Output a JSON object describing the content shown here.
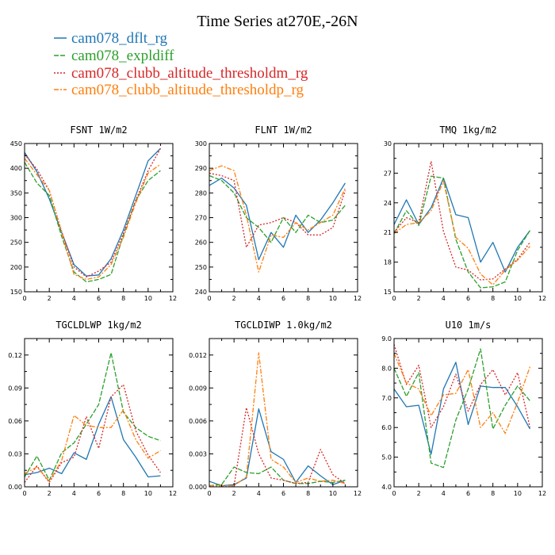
{
  "figure": {
    "title": "Time Series at270E,-26N",
    "legend": [
      {
        "label": "cam078_dflt_rg",
        "color": "#1f77b4",
        "dash": "solid"
      },
      {
        "label": "cam078_expldiff",
        "color": "#2ca02c",
        "dash": "longdash"
      },
      {
        "label": "cam078_clubb_altitude_thresholdm_rg",
        "color": "#d62728",
        "dash": "dot"
      },
      {
        "label": "cam078_clubb_altitude_thresholdp_rg",
        "color": "#ff7f0e",
        "dash": "dashdot"
      }
    ]
  },
  "chart_data": [
    {
      "type": "line",
      "title": "FSNT  1W/m2",
      "xlim": [
        0,
        12
      ],
      "xticks": [
        0,
        2,
        4,
        6,
        8,
        10,
        12
      ],
      "xtick_labels": [
        "0",
        "2",
        "4",
        "6",
        "8",
        "10",
        "12"
      ],
      "ylim": [
        150,
        450
      ],
      "yticks": [
        150,
        200,
        250,
        300,
        350,
        400,
        450
      ],
      "ytick_labels": [
        "150",
        "200",
        "250",
        "300",
        "350",
        "400",
        "450"
      ],
      "x": [
        0,
        1,
        2,
        3,
        4,
        5,
        6,
        7,
        8,
        9,
        10,
        11
      ],
      "series": [
        {
          "name": "cam078_dflt_rg",
          "values": [
            432,
            393,
            338,
            270,
            205,
            182,
            184,
            217,
            275,
            345,
            415,
            440
          ]
        },
        {
          "name": "cam078_expldiff",
          "values": [
            412,
            370,
            345,
            262,
            190,
            170,
            175,
            185,
            265,
            335,
            375,
            395
          ]
        },
        {
          "name": "cam078_clubb_altitude_thresholdm_rg",
          "values": [
            428,
            398,
            355,
            272,
            200,
            180,
            192,
            210,
            268,
            335,
            395,
            440
          ]
        },
        {
          "name": "cam078_clubb_altitude_thresholdp_rg",
          "values": [
            420,
            387,
            355,
            270,
            185,
            175,
            180,
            205,
            260,
            330,
            390,
            408
          ]
        }
      ]
    },
    {
      "type": "line",
      "title": "FLNT  1W/m2",
      "xlim": [
        0,
        12
      ],
      "xticks": [
        0,
        2,
        4,
        6,
        8,
        10,
        12
      ],
      "xtick_labels": [
        "0",
        "2",
        "4",
        "6",
        "8",
        "10",
        "12"
      ],
      "ylim": [
        240,
        300
      ],
      "yticks": [
        240,
        250,
        260,
        270,
        280,
        290,
        300
      ],
      "ytick_labels": [
        "240",
        "250",
        "260",
        "270",
        "280",
        "290",
        "300"
      ],
      "x": [
        0,
        1,
        2,
        3,
        4,
        5,
        6,
        7,
        8,
        9,
        10,
        11
      ],
      "series": [
        {
          "name": "cam078_dflt_rg",
          "values": [
            283,
            286,
            282,
            275,
            253,
            264,
            258,
            271,
            264,
            269,
            276,
            284
          ]
        },
        {
          "name": "cam078_expldiff",
          "values": [
            287,
            285,
            280,
            270,
            266,
            260,
            270,
            264,
            271,
            268,
            269,
            275
          ]
        },
        {
          "name": "cam078_clubb_altitude_thresholdm_rg",
          "values": [
            288,
            287,
            285,
            258,
            267,
            268,
            270,
            268,
            263,
            263,
            266,
            281
          ]
        },
        {
          "name": "cam078_clubb_altitude_thresholdp_rg",
          "values": [
            289,
            291,
            289,
            271,
            248,
            263,
            262,
            268,
            265,
            268,
            271,
            282
          ]
        }
      ]
    },
    {
      "type": "line",
      "title": "TMQ  1kg/m2",
      "xlim": [
        0,
        12
      ],
      "xticks": [
        0,
        2,
        4,
        6,
        8,
        10,
        12
      ],
      "xtick_labels": [
        "0",
        "2",
        "4",
        "6",
        "8",
        "10",
        "12"
      ],
      "ylim": [
        15,
        30
      ],
      "yticks": [
        15,
        18,
        21,
        24,
        27,
        30
      ],
      "ytick_labels": [
        "15",
        "18",
        "21",
        "24",
        "27",
        "30"
      ],
      "x": [
        0,
        1,
        2,
        3,
        4,
        5,
        6,
        7,
        8,
        9,
        10,
        11
      ],
      "series": [
        {
          "name": "cam078_dflt_rg",
          "values": [
            21.8,
            24.3,
            21.8,
            23.5,
            26.5,
            22.8,
            22.5,
            18.0,
            20.0,
            17.0,
            19.5,
            21.2
          ]
        },
        {
          "name": "cam078_expldiff",
          "values": [
            20.9,
            23.2,
            21.7,
            26.7,
            26.5,
            20.3,
            17.0,
            15.4,
            15.5,
            16.0,
            19.2,
            21.2
          ]
        },
        {
          "name": "cam078_clubb_altitude_thresholdm_rg",
          "values": [
            21.0,
            22.5,
            22.0,
            28.2,
            21.1,
            17.5,
            17.2,
            16.2,
            16.3,
            17.3,
            18.3,
            20.0
          ]
        },
        {
          "name": "cam078_clubb_altitude_thresholdp_rg",
          "values": [
            20.9,
            21.8,
            22.0,
            23.2,
            26.2,
            20.5,
            19.4,
            16.8,
            15.7,
            17.2,
            18.2,
            19.6
          ]
        }
      ]
    },
    {
      "type": "line",
      "title": "TGCLDLWP  1kg/m2",
      "xlim": [
        0,
        12
      ],
      "xticks": [
        0,
        2,
        4,
        6,
        8,
        10,
        12
      ],
      "xtick_labels": [
        "0",
        "2",
        "4",
        "6",
        "8",
        "10",
        "12"
      ],
      "ylim": [
        0,
        0.135
      ],
      "yticks": [
        0,
        0.03,
        0.06,
        0.09,
        0.12
      ],
      "ytick_labels": [
        "0.00",
        "0.03",
        "0.06",
        "0.09",
        "0.12"
      ],
      "x": [
        0,
        1,
        2,
        3,
        4,
        5,
        6,
        7,
        8,
        9,
        10,
        11
      ],
      "series": [
        {
          "name": "cam078_dflt_rg",
          "values": [
            0.011,
            0.013,
            0.017,
            0.012,
            0.031,
            0.025,
            0.057,
            0.082,
            0.043,
            0.027,
            0.009,
            0.01
          ]
        },
        {
          "name": "cam078_expldiff",
          "values": [
            0.009,
            0.028,
            0.006,
            0.031,
            0.04,
            0.057,
            0.075,
            0.122,
            0.068,
            0.054,
            0.046,
            0.042
          ]
        },
        {
          "name": "cam078_clubb_altitude_thresholdm_rg",
          "values": [
            0.004,
            0.019,
            0.004,
            0.022,
            0.027,
            0.064,
            0.035,
            0.082,
            0.093,
            0.051,
            0.029,
            0.013
          ]
        },
        {
          "name": "cam078_clubb_altitude_thresholdp_rg",
          "values": [
            0.012,
            0.018,
            0.005,
            0.024,
            0.065,
            0.056,
            0.054,
            0.054,
            0.07,
            0.043,
            0.026,
            0.033
          ]
        }
      ]
    },
    {
      "type": "line",
      "title": "TGCLDIWP  1.0kg/m2",
      "xlim": [
        0,
        12
      ],
      "xticks": [
        0,
        2,
        4,
        6,
        8,
        10,
        12
      ],
      "xtick_labels": [
        "0",
        "2",
        "4",
        "6",
        "8",
        "10",
        "12"
      ],
      "ylim": [
        0,
        0.0135
      ],
      "yticks": [
        0,
        0.003,
        0.006,
        0.009,
        0.012
      ],
      "ytick_labels": [
        "0.000",
        "0.003",
        "0.006",
        "0.009",
        "0.012"
      ],
      "x": [
        0,
        1,
        2,
        3,
        4,
        5,
        6,
        7,
        8,
        9,
        10,
        11
      ],
      "series": [
        {
          "name": "cam078_dflt_rg",
          "values": [
            0.0005,
            0.0001,
            0.0002,
            0.0008,
            0.0071,
            0.0032,
            0.0025,
            0.0004,
            0.0019,
            0.001,
            0.0002,
            0.0006
          ]
        },
        {
          "name": "cam078_expldiff",
          "values": [
            0.0001,
            0.0002,
            0.0018,
            0.0013,
            0.0012,
            0.0018,
            0.0006,
            0.0003,
            0.0003,
            0.0005,
            0.0004,
            0.0006
          ]
        },
        {
          "name": "cam078_clubb_altitude_thresholdm_rg",
          "values": [
            0.0001,
            0.0001,
            0.0001,
            0.0072,
            0.003,
            0.0008,
            0.0006,
            0.0003,
            0.0004,
            0.0034,
            0.0011,
            0.0003
          ]
        },
        {
          "name": "cam078_clubb_altitude_thresholdp_rg",
          "values": [
            0.0001,
            0.0001,
            0.0001,
            0.0009,
            0.0122,
            0.0025,
            0.0018,
            0.0004,
            0.0008,
            0.0005,
            0.0006,
            0.0003
          ]
        }
      ]
    },
    {
      "type": "line",
      "title": "U10  1m/s",
      "xlim": [
        0,
        12
      ],
      "xticks": [
        0,
        2,
        4,
        6,
        8,
        10,
        12
      ],
      "xtick_labels": [
        "0",
        "2",
        "4",
        "6",
        "8",
        "10",
        "12"
      ],
      "ylim": [
        4.0,
        9.0
      ],
      "yticks": [
        4.0,
        5.0,
        6.0,
        7.0,
        8.0,
        9.0
      ],
      "ytick_labels": [
        "4.0",
        "5.0",
        "6.0",
        "7.0",
        "8.0",
        "9.0"
      ],
      "x": [
        0,
        1,
        2,
        3,
        4,
        5,
        6,
        7,
        8,
        9,
        10,
        11
      ],
      "series": [
        {
          "name": "cam078_dflt_rg",
          "values": [
            7.3,
            6.7,
            6.75,
            5.1,
            7.3,
            8.2,
            6.1,
            7.4,
            7.35,
            7.35,
            6.7,
            5.95
          ]
        },
        {
          "name": "cam078_expldiff",
          "values": [
            8.0,
            7.05,
            7.85,
            4.8,
            4.65,
            6.25,
            7.3,
            8.65,
            5.95,
            6.75,
            7.4,
            6.9
          ]
        },
        {
          "name": "cam078_clubb_altitude_thresholdm_rg",
          "values": [
            8.8,
            7.45,
            8.1,
            6.0,
            6.7,
            7.8,
            6.55,
            7.45,
            7.95,
            7.1,
            7.85,
            6.0
          ]
        },
        {
          "name": "cam078_clubb_altitude_thresholdp_rg",
          "values": [
            8.5,
            7.5,
            7.3,
            6.4,
            7.1,
            7.15,
            7.95,
            6.0,
            6.5,
            5.8,
            6.85,
            8.05
          ]
        }
      ]
    }
  ]
}
